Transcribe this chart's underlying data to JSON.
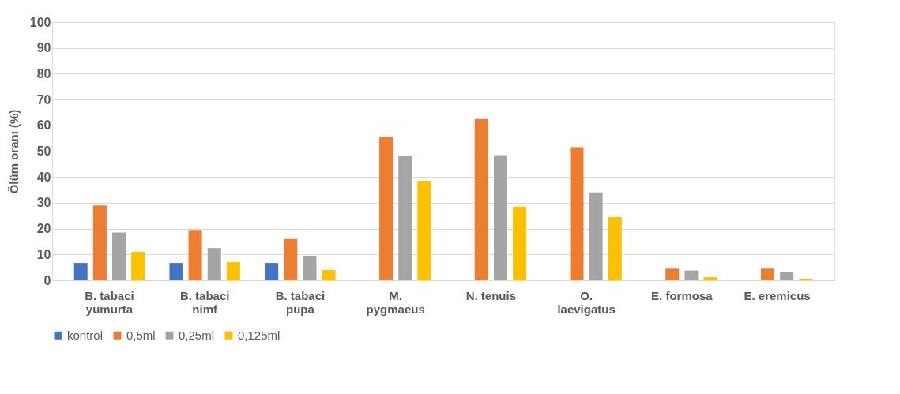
{
  "chart_data": {
    "type": "bar",
    "ylabel": "Ölüm oranı (%)",
    "categories": [
      "B. tabaci\nyumurta",
      "B. tabaci\nnimf",
      "B. tabaci\npupa",
      "M.\npygmaeus",
      "N. tenuis",
      "O.\nlaevigatus",
      "E. formosa",
      "E. eremicus"
    ],
    "series": [
      {
        "name": "kontrol",
        "color": "#4472c4",
        "values": [
          6.7,
          6.7,
          6.7,
          0,
          0,
          0,
          0,
          0
        ]
      },
      {
        "name": "0,5ml",
        "color": "#ed7d31",
        "values": [
          29,
          19.5,
          16,
          55.5,
          62.5,
          51.5,
          4.5,
          4.5
        ]
      },
      {
        "name": "0,25ml",
        "color": "#a5a5a5",
        "values": [
          18.5,
          12.5,
          9.5,
          48,
          48.5,
          34,
          3.8,
          3.2
        ]
      },
      {
        "name": "0,125ml",
        "color": "#ffc000",
        "values": [
          11,
          7,
          4,
          38.5,
          28.5,
          24.5,
          1.2,
          0.6
        ]
      }
    ],
    "ylim": [
      0,
      100
    ],
    "yticks": [
      0,
      10,
      20,
      30,
      40,
      50,
      60,
      70,
      80,
      90,
      100
    ],
    "grid": "y",
    "legend": "bottom"
  }
}
